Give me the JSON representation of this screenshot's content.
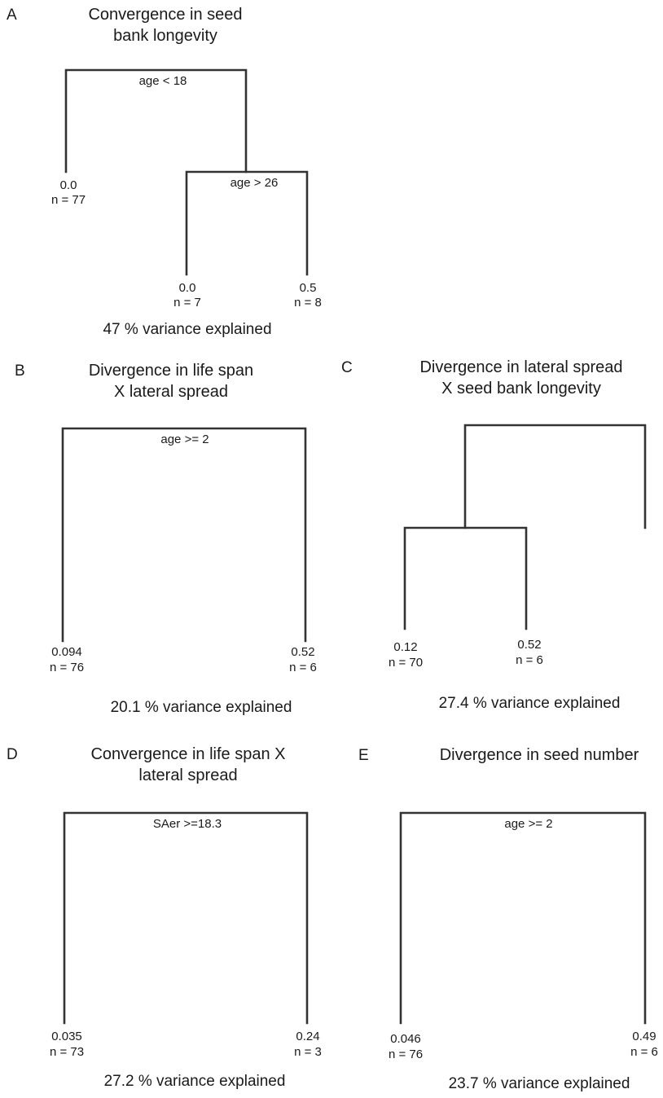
{
  "colors": {
    "line": "#333333",
    "text": "#1a1a1a",
    "background": "#ffffff"
  },
  "panels": [
    {
      "id": "A",
      "letter": "A",
      "title_lines": [
        "Convergence in seed",
        "bank longevity"
      ],
      "splits": [
        "age < 18",
        "age > 26"
      ],
      "leaves": [
        {
          "value": "0.0",
          "n": "n = 77"
        },
        {
          "value": "0.0",
          "n": "n = 7"
        },
        {
          "value": "0.5",
          "n": "n = 8"
        }
      ],
      "variance": "47 % variance explained"
    },
    {
      "id": "B",
      "letter": "B",
      "title_lines": [
        "Divergence in life span",
        "X lateral spread"
      ],
      "splits": [
        "age >= 2"
      ],
      "leaves": [
        {
          "value": "0.094",
          "n": "n = 76"
        },
        {
          "value": "0.52",
          "n": "n = 6"
        }
      ],
      "variance": "20.1 % variance explained"
    },
    {
      "id": "C",
      "letter": "C",
      "title_lines": [
        "Divergence in lateral spread",
        "X seed bank longevity"
      ],
      "splits": [],
      "leaves": [
        {
          "value": "0.12",
          "n": "n = 70"
        },
        {
          "value": "0.52",
          "n": "n = 6"
        }
      ],
      "variance": "27.4 % variance explained"
    },
    {
      "id": "D",
      "letter": "D",
      "title_lines": [
        "Convergence in life span X",
        "lateral spread"
      ],
      "splits": [
        "SAer >=18.3"
      ],
      "leaves": [
        {
          "value": "0.035",
          "n": "n = 73"
        },
        {
          "value": "0.24",
          "n": "n = 3"
        }
      ],
      "variance": "27.2 % variance explained"
    },
    {
      "id": "E",
      "letter": "E",
      "title_lines": [
        "Divergence in seed number"
      ],
      "splits": [
        "age >= 2"
      ],
      "leaves": [
        {
          "value": "0.046",
          "n": "n = 76"
        },
        {
          "value": "0.49",
          "n": "n = 6"
        }
      ],
      "variance": "23.7 % variance explained"
    }
  ]
}
